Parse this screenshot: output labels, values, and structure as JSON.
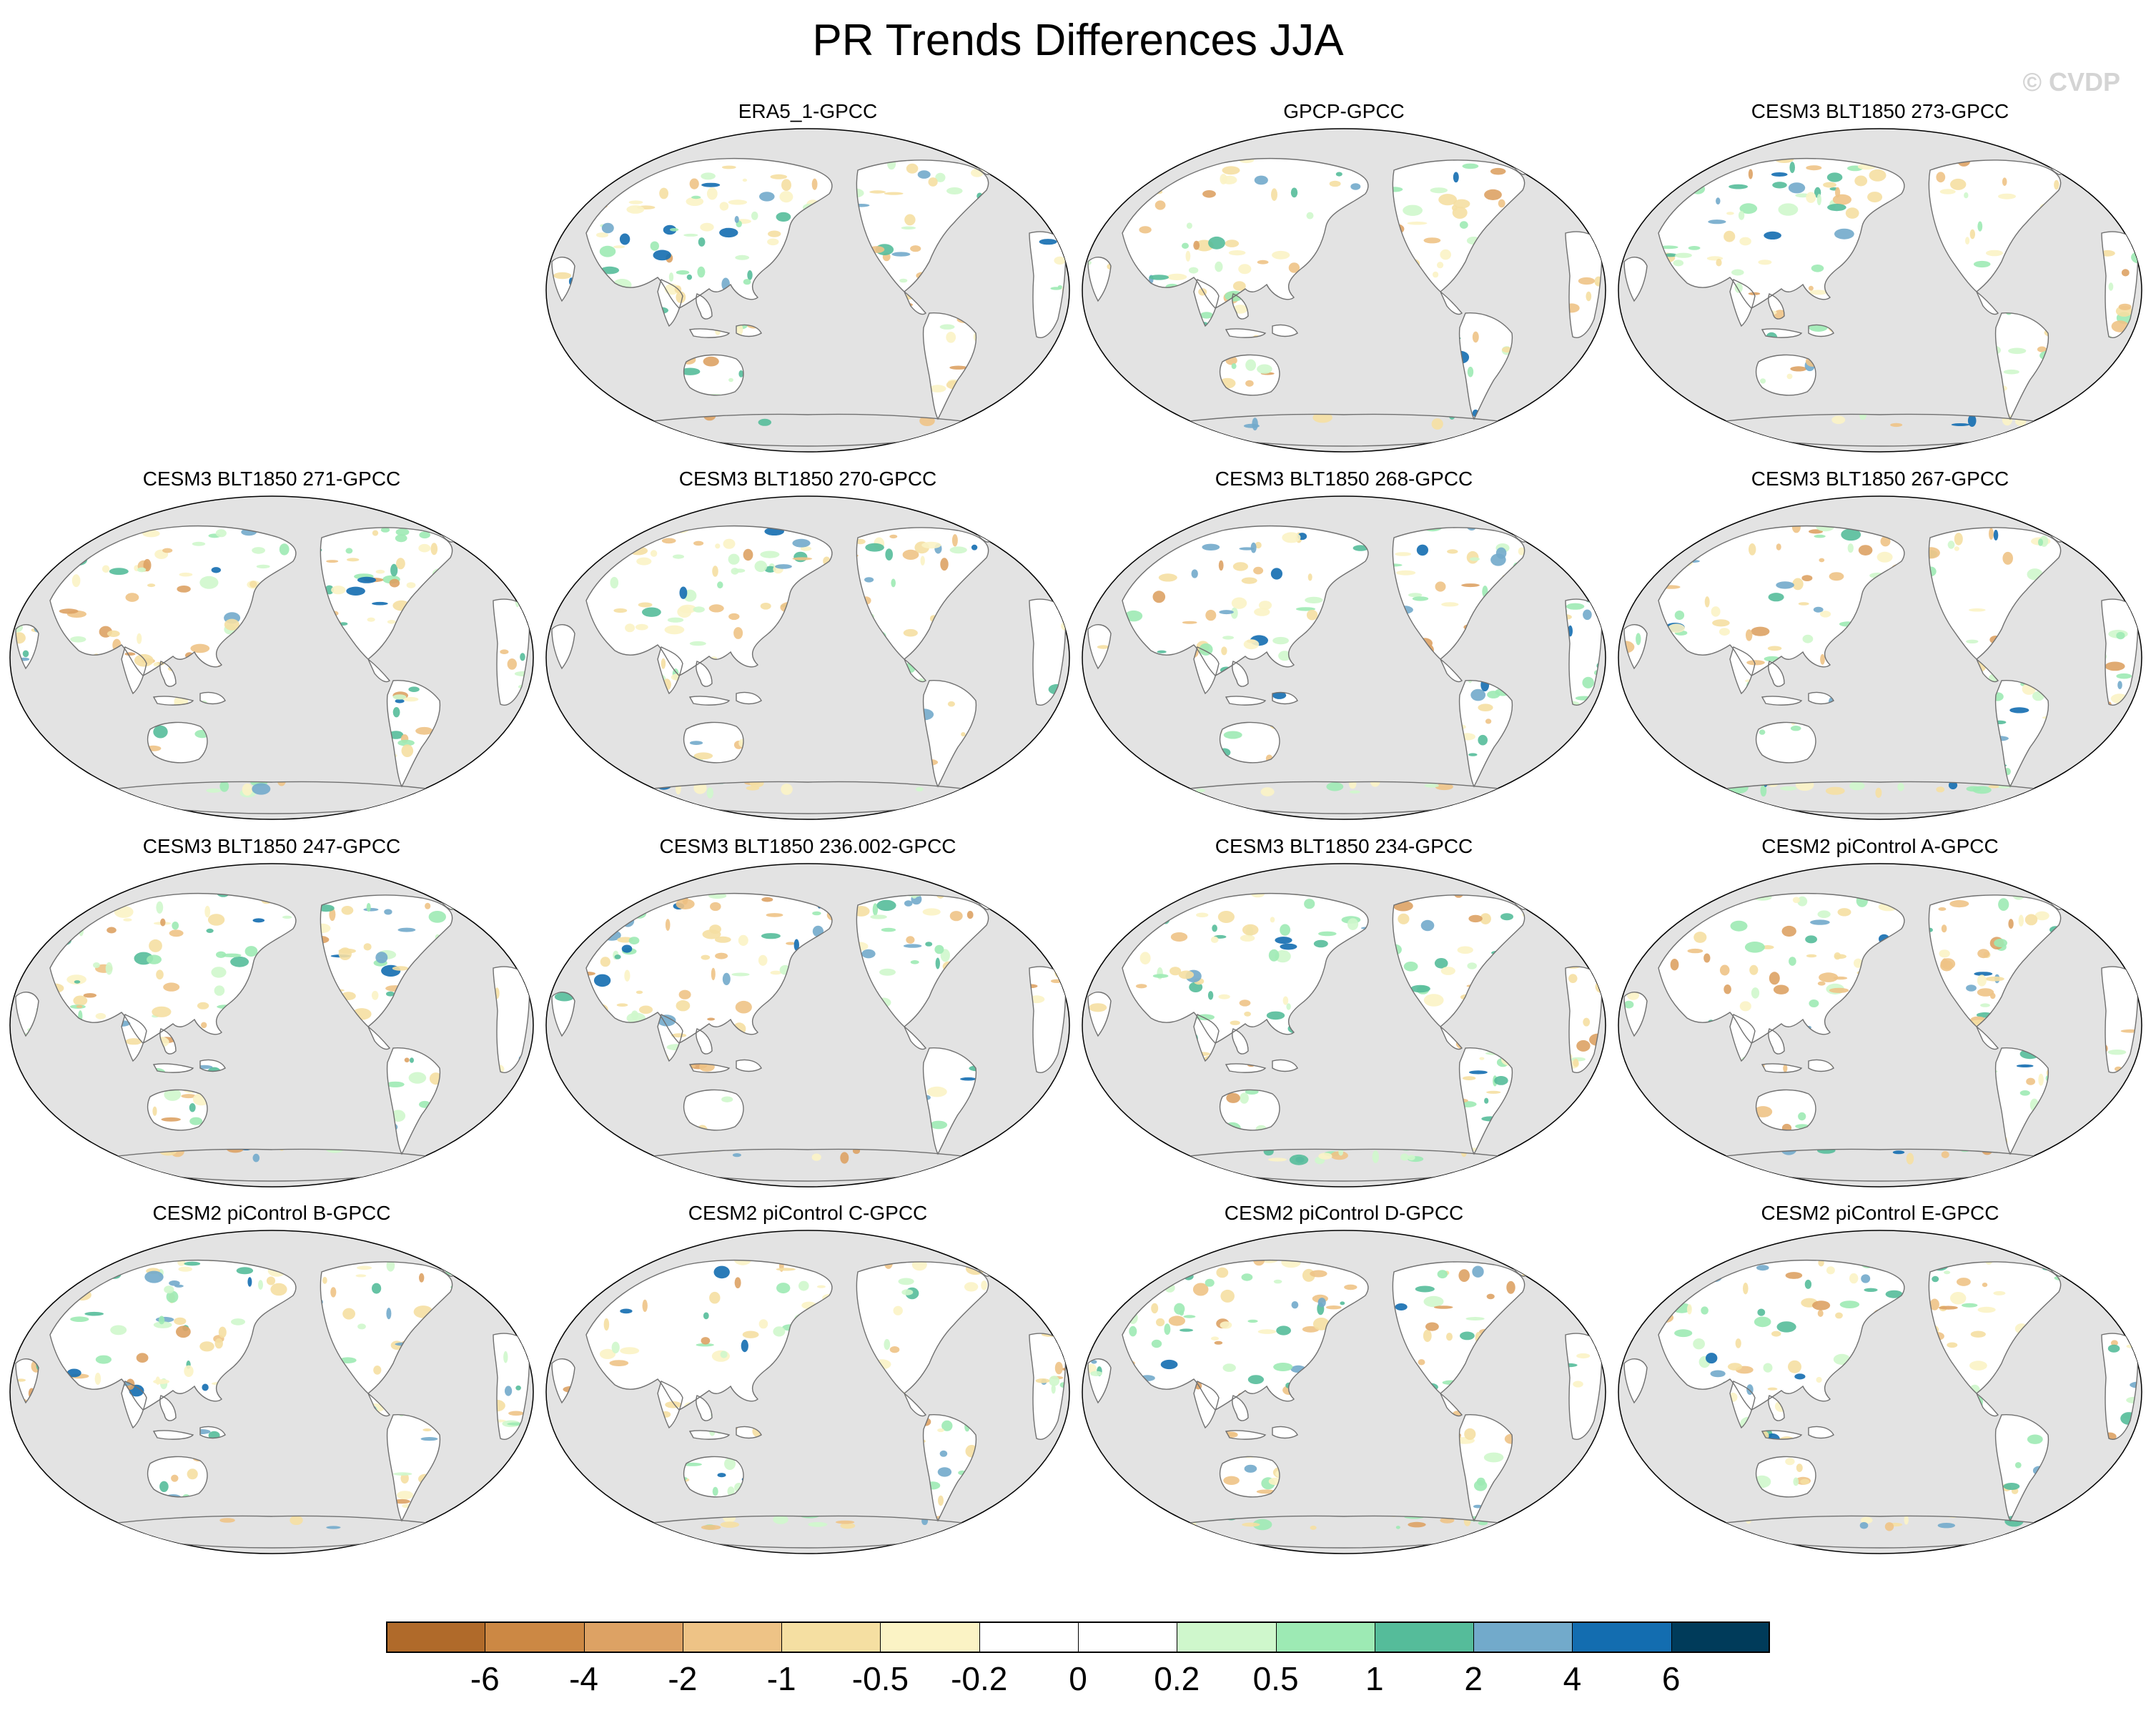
{
  "figure": {
    "title": "PR Trends Differences JJA",
    "watermark": "© CVDP"
  },
  "panels": [
    {
      "title": "ERA5_1-GPCC"
    },
    {
      "title": "GPCP-GPCC"
    },
    {
      "title": "CESM3 BLT1850 273-GPCC"
    },
    {
      "title": "CESM3 BLT1850 271-GPCC"
    },
    {
      "title": "CESM3 BLT1850 270-GPCC"
    },
    {
      "title": "CESM3 BLT1850 268-GPCC"
    },
    {
      "title": "CESM3 BLT1850 267-GPCC"
    },
    {
      "title": "CESM3 BLT1850 247-GPCC"
    },
    {
      "title": "CESM3 BLT1850 236.002-GPCC"
    },
    {
      "title": "CESM3 BLT1850 234-GPCC"
    },
    {
      "title": "CESM2 piControl A-GPCC"
    },
    {
      "title": "CESM2 piControl B-GPCC"
    },
    {
      "title": "CESM2 piControl C-GPCC"
    },
    {
      "title": "CESM2 piControl D-GPCC"
    },
    {
      "title": "CESM2 piControl E-GPCC"
    }
  ],
  "colorbar": {
    "labels": [
      "-6",
      "-4",
      "-2",
      "-1",
      "-0.5",
      "-0.2",
      "0",
      "0.2",
      "0.5",
      "1",
      "2",
      "4",
      "6"
    ],
    "colors": [
      "#b06a2a",
      "#cc8844",
      "#dda264",
      "#eec386",
      "#f5dfa2",
      "#fbf3c5",
      "#ffffff",
      "#ffffff",
      "#cff7cc",
      "#9deab4",
      "#55bc9a",
      "#72aacb",
      "#136db0",
      "#003b5a"
    ]
  },
  "style": {
    "ocean": "#e3e3e3",
    "land": "#ffffff",
    "coast": "#707070"
  }
}
